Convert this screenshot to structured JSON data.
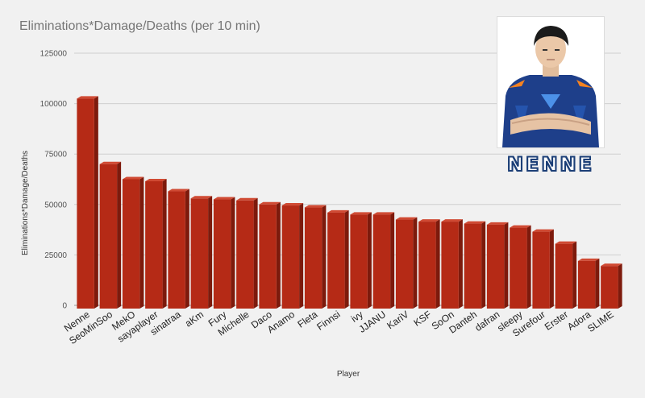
{
  "chart_data": {
    "type": "bar",
    "title": "Eliminations*Damage/Deaths (per 10 min)",
    "xlabel": "Player",
    "ylabel": "Eliminations*Damage/Deaths",
    "ylim": [
      0,
      125000
    ],
    "yticks": [
      0,
      25000,
      50000,
      75000,
      100000,
      125000
    ],
    "grid": true,
    "bar_color": "#b52a16",
    "categories": [
      "Nenne",
      "SeoMinSoo",
      "MekO",
      "sayaplayer",
      "sinatraa",
      "aKm",
      "Fury",
      "Michelle",
      "Daco",
      "Anamo",
      "Fleta",
      "Finnsi",
      "ivy",
      "JJANU",
      "KariV",
      "KSF",
      "SoOn",
      "Danteh",
      "dafran",
      "sleepy",
      "Surefour",
      "Erster",
      "Adora",
      "SLIME"
    ],
    "values": [
      102500,
      70000,
      62500,
      61500,
      56500,
      53000,
      52500,
      52000,
      50000,
      49500,
      48500,
      46000,
      45000,
      45000,
      42500,
      41500,
      41500,
      40500,
      40000,
      38500,
      36500,
      30500,
      22000,
      19500
    ]
  },
  "photo": {
    "caption": "NENNE",
    "jersey_color": "#1e3f8a",
    "accent_color": "#f58220",
    "caption_color": "#1c3f77"
  }
}
